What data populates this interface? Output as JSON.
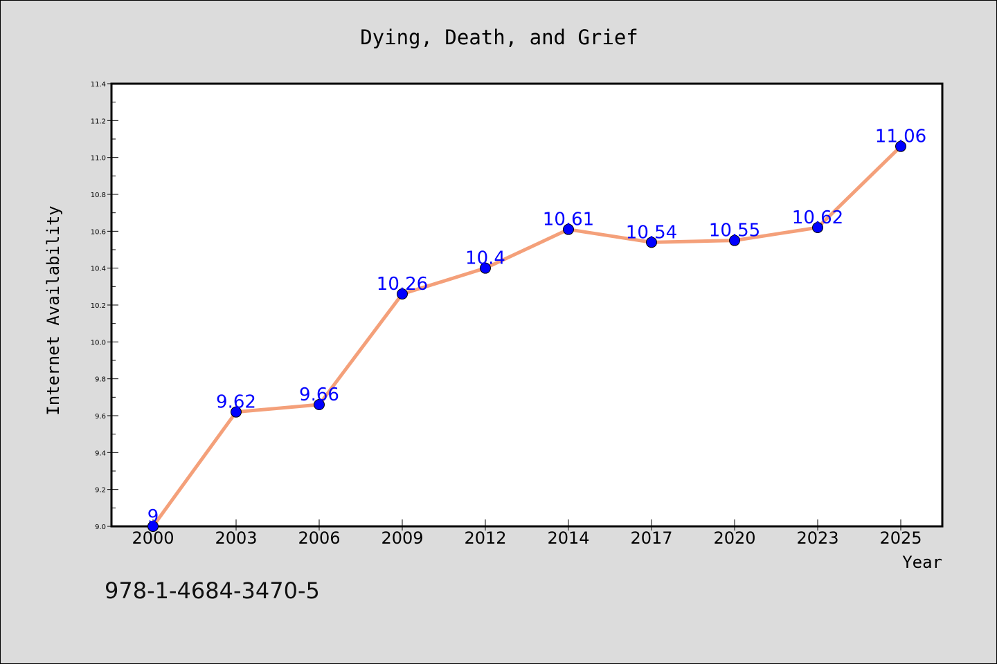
{
  "footer": {
    "isbn": "978-1-4684-3470-5"
  },
  "chart_data": {
    "type": "line",
    "title": "Dying, Death, and Grief",
    "xlabel": "Year",
    "ylabel": "Internet Availability",
    "categories": [
      "2000",
      "2003",
      "2006",
      "2009",
      "2012",
      "2014",
      "2017",
      "2020",
      "2023",
      "2025"
    ],
    "series": [
      {
        "values": [
          9,
          9.62,
          9.66,
          10.26,
          10.4,
          10.61,
          10.54,
          10.55,
          10.62,
          11.06
        ],
        "data_labels": [
          "9",
          "9.62",
          "9.66",
          "10.26",
          "10.4",
          "10.61",
          "10.54",
          "10.55",
          "10.62",
          "11.06"
        ]
      }
    ],
    "ylim": [
      9.0,
      11.4
    ],
    "yticks": [
      "9.0",
      "9.2",
      "9.4",
      "9.6",
      "9.8",
      "10.0",
      "10.2",
      "10.4",
      "10.6",
      "10.8",
      "11.0",
      "11.2",
      "11.4"
    ],
    "grid": false,
    "legend": "none",
    "colors": {
      "line": "#f4a07a",
      "marker": "#0000ff",
      "data_label": "#0000ff",
      "plot_background": "#ffffff",
      "page_background": "#dcdcdc"
    }
  }
}
